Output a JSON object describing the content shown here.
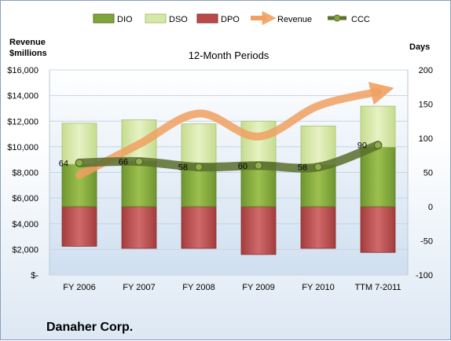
{
  "chart_data": {
    "type": "bar",
    "title": "12-Month Periods",
    "company": "Danaher Corp.",
    "categories": [
      "FY 2006",
      "FY 2007",
      "FY 2008",
      "FY 2009",
      "FY 2010",
      "TTM 7-2011"
    ],
    "left_axis": {
      "title_line1": "Revenue",
      "title_line2": "$millions",
      "range": [
        0,
        16000
      ],
      "ticks": [
        "$-",
        "$2,000",
        "$4,000",
        "$6,000",
        "$8,000",
        "$10,000",
        "$12,000",
        "$14,000",
        "$16,000"
      ],
      "tick_values": [
        0,
        2000,
        4000,
        6000,
        8000,
        10000,
        12000,
        14000,
        16000
      ]
    },
    "right_axis": {
      "title": "Days",
      "range": [
        -100,
        200
      ],
      "ticks": [
        "-100",
        "-50",
        "0",
        "50",
        "100",
        "150",
        "200"
      ],
      "tick_values": [
        -100,
        -50,
        0,
        50,
        100,
        150,
        200
      ]
    },
    "legend": [
      "DIO",
      "DSO",
      "DPO",
      "Revenue",
      "CCC"
    ],
    "series": [
      {
        "name": "DIO",
        "axis": "days",
        "values": [
          62,
          67,
          63,
          65,
          61,
          87
        ],
        "color": "#7ea43a"
      },
      {
        "name": "DSO",
        "axis": "days",
        "values": [
          60,
          60,
          58,
          60,
          57,
          60
        ],
        "color": "#d6e8a8"
      },
      {
        "name": "DPO",
        "axis": "days",
        "values": [
          -58,
          -61,
          -61,
          -70,
          -61,
          -67
        ],
        "color": "#b94a4a"
      },
      {
        "name": "Revenue",
        "axis": "revenue",
        "values": [
          7800,
          10200,
          12600,
          10800,
          13200,
          14300
        ],
        "color": "#f0a060"
      },
      {
        "name": "CCC",
        "axis": "days",
        "values": [
          64,
          66,
          58,
          60,
          58,
          90
        ],
        "color": "#5b6f2e"
      }
    ],
    "ccc_labels": [
      "64",
      "66",
      "58",
      "60",
      "58",
      "90"
    ],
    "grid": true,
    "legend_position": "top"
  }
}
